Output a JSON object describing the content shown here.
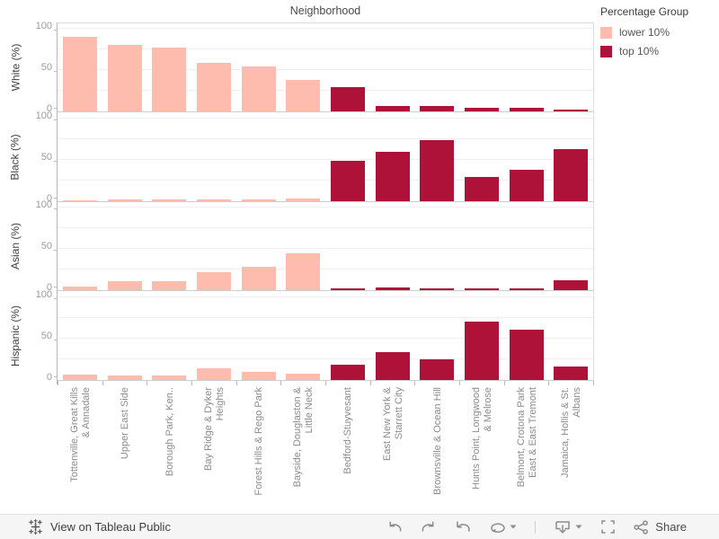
{
  "legend": {
    "title": "Percentage Group",
    "items": [
      {
        "label": "lower 10%",
        "color": "#fdbcae"
      },
      {
        "label": "top 10%",
        "color": "#ae1239"
      }
    ]
  },
  "chart_data": {
    "type": "bar",
    "column_title": "Neighborhood",
    "categories": [
      "Tottenville, Great Kills & Annadale",
      "Upper East Side",
      "Borough Park, Ken..",
      "Bay Ridge & Dyker Heights",
      "Forest Hills & Rego Park",
      "Bayside, Douglaston & Little Neck",
      "Bedford-Stuyvesant",
      "East New York & Starrett City",
      "Brownsville & Ocean Hill",
      "Hunts Point, Longwood & Melrose",
      "Belmont, Crotona Park East & East Tremont",
      "Jamaica, Hollis & St. Albans"
    ],
    "category_label_lines": [
      [
        "Tottenville, Great Kills",
        "& Annadale"
      ],
      [
        "Upper East Side"
      ],
      [
        "Borough Park, Ken.."
      ],
      [
        "Bay Ridge & Dyker",
        "Heights"
      ],
      [
        "Forest Hills & Rego Park"
      ],
      [
        "Bayside, Douglaston &",
        "Little Neck"
      ],
      [
        "Bedford-Stuyvesant"
      ],
      [
        "East New York &",
        "Starrett City"
      ],
      [
        "Brownsville & Ocean Hill"
      ],
      [
        "Hunts Point, Longwood",
        "& Melrose"
      ],
      [
        "Belmont, Crotona Park",
        "East & East Tremont"
      ],
      [
        "Jamaica, Hollis & St.",
        "Albans"
      ]
    ],
    "group_by_category": [
      "lower 10%",
      "lower 10%",
      "lower 10%",
      "lower 10%",
      "lower 10%",
      "lower 10%",
      "top 10%",
      "top 10%",
      "top 10%",
      "top 10%",
      "top 10%",
      "top 10%"
    ],
    "colors": {
      "lower 10%": "#fdbcae",
      "top 10%": "#ae1239"
    },
    "ylim": [
      0,
      100
    ],
    "yticks": [
      0,
      50,
      100
    ],
    "gridlines": [
      25,
      50,
      75,
      100
    ],
    "grid": true,
    "legend_position": "top-right",
    "panels": [
      {
        "ylabel": "White (%)",
        "values": [
          90,
          80,
          77,
          58,
          54,
          38,
          29,
          6,
          6,
          4,
          4,
          2
        ]
      },
      {
        "ylabel": "Black (%)",
        "values": [
          1,
          2,
          2,
          2,
          2,
          3,
          48,
          59,
          73,
          29,
          37,
          63
        ]
      },
      {
        "ylabel": "Asian (%)",
        "values": [
          5,
          11,
          11,
          22,
          29,
          45,
          3,
          4,
          2,
          2,
          2,
          12
        ]
      },
      {
        "ylabel": "Hispanic (%)",
        "values": [
          7,
          5,
          5,
          14,
          10,
          8,
          18,
          34,
          25,
          71,
          61,
          16
        ]
      }
    ]
  },
  "toolbar": {
    "view_on_label": "View on Tableau Public",
    "share_label": "Share"
  }
}
